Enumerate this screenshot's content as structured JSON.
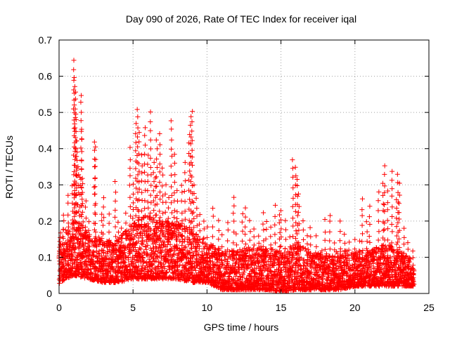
{
  "chart_data": {
    "type": "scatter",
    "title": "Day 090 of 2026, Rate Of TEC Index for receiver iqal",
    "xlabel": "GPS time / hours",
    "ylabel": "ROTI / TECUs",
    "xlim": [
      0,
      25
    ],
    "ylim": [
      0,
      0.7
    ],
    "xticks": [
      0,
      5,
      10,
      15,
      20,
      25
    ],
    "xtick_labels": [
      "0",
      "5",
      "10",
      "15",
      "20",
      "25"
    ],
    "yticks": [
      0,
      0.1,
      0.2,
      0.3,
      0.4,
      0.5,
      0.6,
      0.7
    ],
    "ytick_labels": [
      "0",
      "0.1",
      "0.2",
      "0.3",
      "0.4",
      "0.5",
      "0.6",
      "0.7"
    ],
    "grid": true,
    "marker": "+",
    "color": "#ff0000",
    "series": [
      {
        "name": "ROTI",
        "x": [
          0.05,
          0.3,
          0.6,
          0.9,
          1.0,
          1.05,
          1.1,
          1.15,
          1.2,
          1.3,
          1.4,
          1.5,
          1.55,
          1.6,
          1.8,
          2.0,
          2.4,
          2.45,
          2.9,
          3.0,
          3.4,
          3.8,
          4.0,
          4.2,
          4.5,
          4.8,
          5.0,
          5.2,
          5.3,
          5.4,
          5.6,
          5.8,
          6.0,
          6.2,
          6.4,
          6.5,
          6.6,
          6.8,
          7.0,
          7.2,
          7.4,
          7.6,
          7.8,
          8.0,
          8.3,
          8.5,
          8.8,
          8.9,
          9.0,
          9.1,
          9.3,
          9.5,
          9.8,
          10.0,
          10.4,
          10.8,
          11.0,
          11.4,
          11.8,
          12.0,
          12.4,
          12.6,
          12.9,
          13.2,
          13.5,
          13.8,
          14.0,
          14.3,
          14.6,
          14.9,
          15.0,
          15.3,
          15.6,
          15.8,
          16.0,
          16.1,
          16.2,
          16.5,
          16.8,
          17.0,
          17.4,
          17.8,
          18.0,
          18.3,
          18.6,
          19.0,
          19.3,
          19.6,
          20.0,
          20.3,
          20.5,
          20.8,
          21.0,
          21.3,
          21.6,
          21.9,
          22.0,
          22.2,
          22.5,
          22.8,
          22.9,
          23.0,
          23.3,
          23.6,
          23.9
        ],
        "y": [
          0.08,
          0.22,
          0.27,
          0.3,
          0.64,
          0.6,
          0.56,
          0.5,
          0.42,
          0.35,
          0.32,
          0.55,
          0.45,
          0.3,
          0.26,
          0.2,
          0.42,
          0.4,
          0.22,
          0.26,
          0.22,
          0.31,
          0.2,
          0.18,
          0.22,
          0.4,
          0.3,
          0.47,
          0.51,
          0.44,
          0.38,
          0.46,
          0.38,
          0.5,
          0.36,
          0.32,
          0.42,
          0.44,
          0.35,
          0.3,
          0.26,
          0.48,
          0.38,
          0.28,
          0.3,
          0.36,
          0.44,
          0.49,
          0.5,
          0.3,
          0.26,
          0.22,
          0.2,
          0.18,
          0.24,
          0.2,
          0.16,
          0.2,
          0.27,
          0.16,
          0.22,
          0.24,
          0.2,
          0.18,
          0.16,
          0.22,
          0.2,
          0.18,
          0.24,
          0.22,
          0.23,
          0.2,
          0.16,
          0.37,
          0.35,
          0.32,
          0.27,
          0.2,
          0.16,
          0.18,
          0.16,
          0.12,
          0.2,
          0.22,
          0.14,
          0.2,
          0.16,
          0.14,
          0.15,
          0.14,
          0.26,
          0.2,
          0.24,
          0.12,
          0.28,
          0.3,
          0.35,
          0.28,
          0.34,
          0.26,
          0.33,
          0.3,
          0.18,
          0.14,
          0.12
        ]
      }
    ],
    "density_band": {
      "hours": [
        0,
        1,
        2,
        3,
        4,
        5,
        6,
        7,
        8,
        9,
        10,
        11,
        12,
        13,
        14,
        15,
        16,
        17,
        18,
        19,
        20,
        21,
        22,
        23,
        24
      ],
      "low": [
        0.03,
        0.05,
        0.04,
        0.03,
        0.03,
        0.04,
        0.04,
        0.04,
        0.04,
        0.03,
        0.03,
        0.01,
        0.01,
        0.01,
        0.01,
        0.005,
        0.01,
        0.01,
        0.01,
        0.01,
        0.02,
        0.02,
        0.02,
        0.02,
        0.02
      ],
      "high": [
        0.17,
        0.2,
        0.17,
        0.15,
        0.15,
        0.2,
        0.22,
        0.2,
        0.2,
        0.18,
        0.14,
        0.12,
        0.12,
        0.13,
        0.13,
        0.12,
        0.14,
        0.12,
        0.11,
        0.12,
        0.12,
        0.12,
        0.14,
        0.12,
        0.09
      ]
    }
  }
}
